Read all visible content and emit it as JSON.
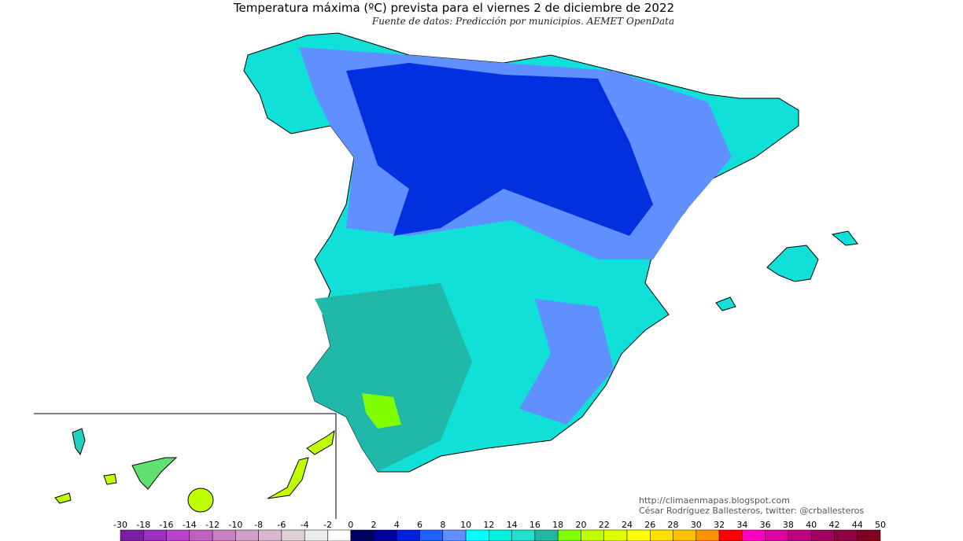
{
  "header": {
    "title": "Temperatura máxima (ºC) prevista para el viernes 2 de diciembre de 2022",
    "subtitle": "Fuente de datos: Predicción por municipios. AEMET OpenData"
  },
  "credits": {
    "url": "http://climaenmapas.blogspot.com",
    "author": "César Rodríguez Ballesteros, twitter: @crballesteros"
  },
  "scale": {
    "ticks": [
      -30,
      -18,
      -16,
      -14,
      -12,
      -10,
      -8,
      -6,
      -4,
      -2,
      0,
      2,
      4,
      6,
      8,
      10,
      12,
      14,
      16,
      18,
      20,
      22,
      24,
      26,
      28,
      30,
      32,
      34,
      36,
      38,
      40,
      42,
      44,
      50
    ],
    "colors": [
      "#7a1fa2",
      "#9b30c0",
      "#b845c8",
      "#c060c0",
      "#c880c0",
      "#d0a0c8",
      "#d8b8d0",
      "#e0d0d8",
      "#ececec",
      "#ffffff",
      "#000060",
      "#0000a0",
      "#0020e0",
      "#2060ff",
      "#6090ff",
      "#00ffff",
      "#00f0e0",
      "#20e0d0",
      "#20b8a0",
      "#80ff00",
      "#c0ff00",
      "#e0ff00",
      "#ffff00",
      "#ffe000",
      "#ffc000",
      "#ff9000",
      "#ff0000",
      "#ff00c0",
      "#e000a0",
      "#c00080",
      "#a00060",
      "#900040",
      "#800020"
    ]
  }
}
